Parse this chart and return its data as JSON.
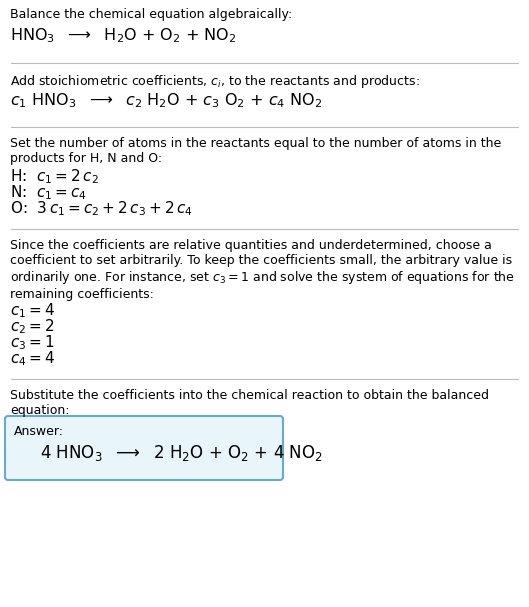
{
  "bg_color": "#ffffff",
  "text_color": "#000000",
  "divider_color": "#bbbbbb",
  "answer_box_color": "#e8f5fb",
  "answer_box_border": "#66aacc",
  "figsize": [
    5.29,
    6.07
  ],
  "dpi": 100,
  "sections": [
    {
      "type": "text_then_math",
      "text": "Balance the chemical equation algebraically:",
      "math": "HNO$_3$  $\\longrightarrow$  H$_2$O + O$_2$ + NO$_2$",
      "text_fs": 9.0,
      "math_fs": 11.5
    },
    {
      "type": "text_then_math",
      "text": "Add stoichiometric coefficients, $c_i$, to the reactants and products:",
      "math": "$c_1$ HNO$_3$  $\\longrightarrow$  $c_2$ H$_2$O + $c_3$ O$_2$ + $c_4$ NO$_2$",
      "text_fs": 9.0,
      "math_fs": 11.5
    },
    {
      "type": "text_then_lines",
      "text": "Set the number of atoms in the reactants equal to the number of atoms in the\nproducts for H, N and O:",
      "lines": [
        "H:  $c_1 = 2\\,c_2$",
        "N:  $c_1 = c_4$",
        "O:  $3\\,c_1 = c_2 + 2\\,c_3 + 2\\,c_4$"
      ],
      "text_fs": 9.0,
      "line_fs": 11.0
    },
    {
      "type": "text_then_lines",
      "text": "Since the coefficients are relative quantities and underdetermined, choose a\ncoefficient to set arbitrarily. To keep the coefficients small, the arbitrary value is\nordinarily one. For instance, set $c_3 = 1$ and solve the system of equations for the\nremaining coefficients:",
      "lines": [
        "$c_1 = 4$",
        "$c_2 = 2$",
        "$c_3 = 1$",
        "$c_4 = 4$"
      ],
      "text_fs": 9.0,
      "line_fs": 11.0
    },
    {
      "type": "text_then_answer",
      "text": "Substitute the coefficients into the chemical reaction to obtain the balanced\nequation:",
      "answer_label": "Answer:",
      "answer_eq": "4 HNO$_3$  $\\longrightarrow$  2 H$_2$O + O$_2$ + 4 NO$_2$",
      "text_fs": 9.0,
      "label_fs": 9.0,
      "eq_fs": 12.0
    }
  ]
}
